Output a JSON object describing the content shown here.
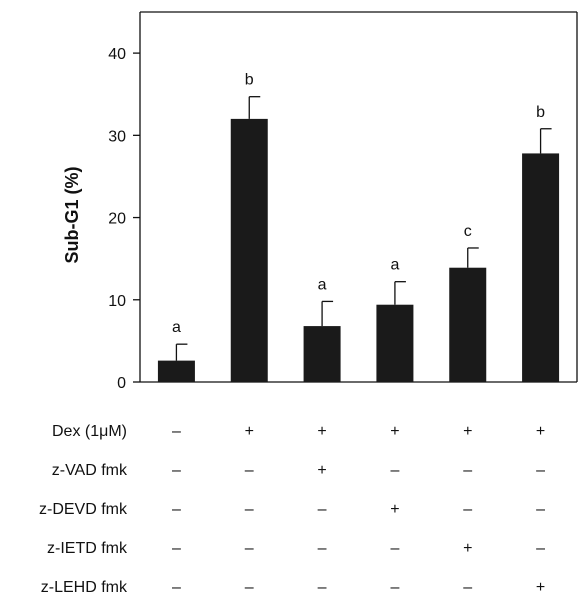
{
  "chart_data": {
    "type": "bar",
    "title": "",
    "xlabel": "",
    "ylabel": "Sub-G1 (%)",
    "ylim": [
      0,
      45
    ],
    "yticks": [
      0,
      10,
      20,
      30,
      40
    ],
    "grid": false,
    "legend": "none",
    "bar_color": "#1a1a1a",
    "values": [
      2.6,
      32,
      6.8,
      9.4,
      13.9,
      27.8
    ],
    "errors": [
      2.0,
      2.7,
      3.0,
      2.8,
      2.4,
      3.0
    ],
    "significance_letters": [
      "a",
      "b",
      "a",
      "a",
      "c",
      "b"
    ],
    "conditions": [
      {
        "label": "Dex (1μM)",
        "symbols": [
          "–",
          "+",
          "+",
          "+",
          "+",
          "+"
        ]
      },
      {
        "label": "z-VAD fmk",
        "symbols": [
          "–",
          "–",
          "+",
          "–",
          "–",
          "–"
        ]
      },
      {
        "label": "z-DEVD fmk",
        "symbols": [
          "–",
          "–",
          "–",
          "+",
          "–",
          "–"
        ]
      },
      {
        "label": "z-IETD fmk",
        "symbols": [
          "–",
          "–",
          "–",
          "–",
          "+",
          "–"
        ]
      },
      {
        "label": "z-LEHD fmk",
        "symbols": [
          "–",
          "–",
          "–",
          "–",
          "–",
          "+"
        ]
      }
    ]
  }
}
